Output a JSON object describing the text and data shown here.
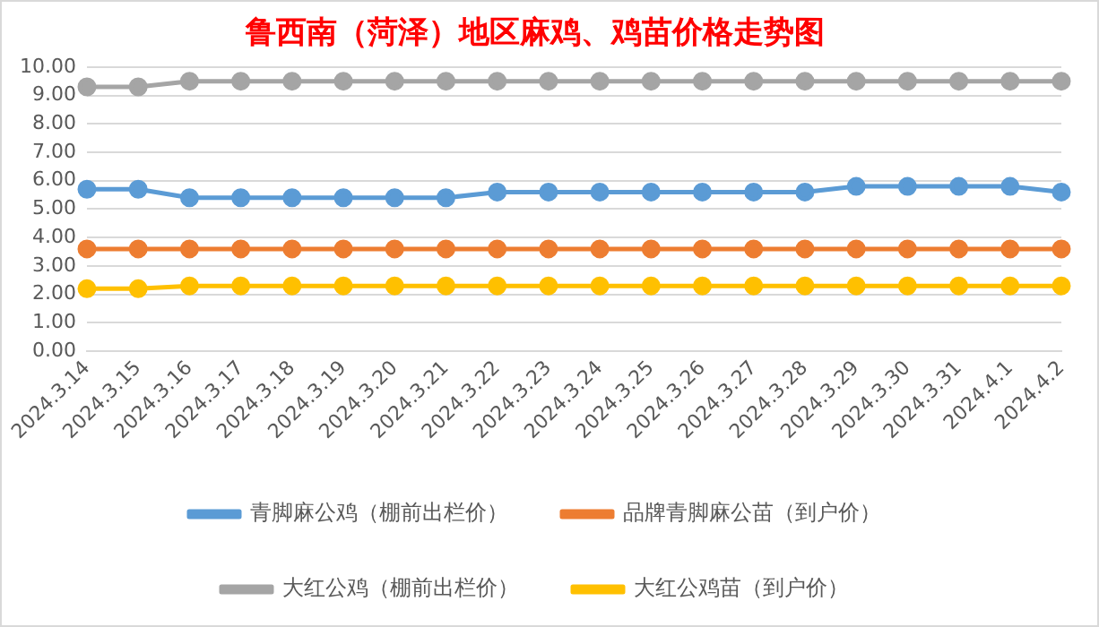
{
  "chart_data": {
    "type": "line",
    "title": "鲁西南（菏泽）地区麻鸡、鸡苗价格走势图",
    "categories": [
      "2024.3.14",
      "2024.3.15",
      "2024.3.16",
      "2024.3.17",
      "2024.3.18",
      "2024.3.19",
      "2024.3.20",
      "2024.3.21",
      "2024.3.22",
      "2024.3.23",
      "2024.3.24",
      "2024.3.25",
      "2024.3.26",
      "2024.3.27",
      "2024.3.28",
      "2024.3.29",
      "2024.3.30",
      "2024.3.31",
      "2024.4.1",
      "2024.4.2"
    ],
    "series": [
      {
        "name": "青脚麻公鸡（棚前出栏价）",
        "color": "#5b9bd5",
        "values": [
          5.7,
          5.7,
          5.4,
          5.4,
          5.4,
          5.4,
          5.4,
          5.4,
          5.6,
          5.6,
          5.6,
          5.6,
          5.6,
          5.6,
          5.6,
          5.8,
          5.8,
          5.8,
          5.8,
          5.6
        ]
      },
      {
        "name": "品牌青脚麻公苗（到户价）",
        "color": "#ed7d31",
        "values": [
          3.6,
          3.6,
          3.6,
          3.6,
          3.6,
          3.6,
          3.6,
          3.6,
          3.6,
          3.6,
          3.6,
          3.6,
          3.6,
          3.6,
          3.6,
          3.6,
          3.6,
          3.6,
          3.6,
          3.6
        ]
      },
      {
        "name": "大红公鸡（棚前出栏价）",
        "color": "#a5a5a5",
        "values": [
          9.3,
          9.3,
          9.5,
          9.5,
          9.5,
          9.5,
          9.5,
          9.5,
          9.5,
          9.5,
          9.5,
          9.5,
          9.5,
          9.5,
          9.5,
          9.5,
          9.5,
          9.5,
          9.5,
          9.5
        ]
      },
      {
        "name": "大红公鸡苗（到户价）",
        "color": "#ffc000",
        "values": [
          2.2,
          2.2,
          2.3,
          2.3,
          2.3,
          2.3,
          2.3,
          2.3,
          2.3,
          2.3,
          2.3,
          2.3,
          2.3,
          2.3,
          2.3,
          2.3,
          2.3,
          2.3,
          2.3,
          2.3
        ]
      }
    ],
    "ylim": [
      0,
      10
    ],
    "yticks": [
      {
        "value": 0,
        "label": "0.00"
      },
      {
        "value": 1,
        "label": "1.00"
      },
      {
        "value": 2,
        "label": "2.00"
      },
      {
        "value": 3,
        "label": "3.00"
      },
      {
        "value": 4,
        "label": "4.00"
      },
      {
        "value": 5,
        "label": "5.00"
      },
      {
        "value": 6,
        "label": "6.00"
      },
      {
        "value": 7,
        "label": "7.00"
      },
      {
        "value": 8,
        "label": "8.00"
      },
      {
        "value": 9,
        "label": "9.00"
      },
      {
        "value": 10,
        "label": "10.00"
      }
    ],
    "grid": "y",
    "legend": "bottom",
    "marker": "circle",
    "line_style": "solid"
  }
}
